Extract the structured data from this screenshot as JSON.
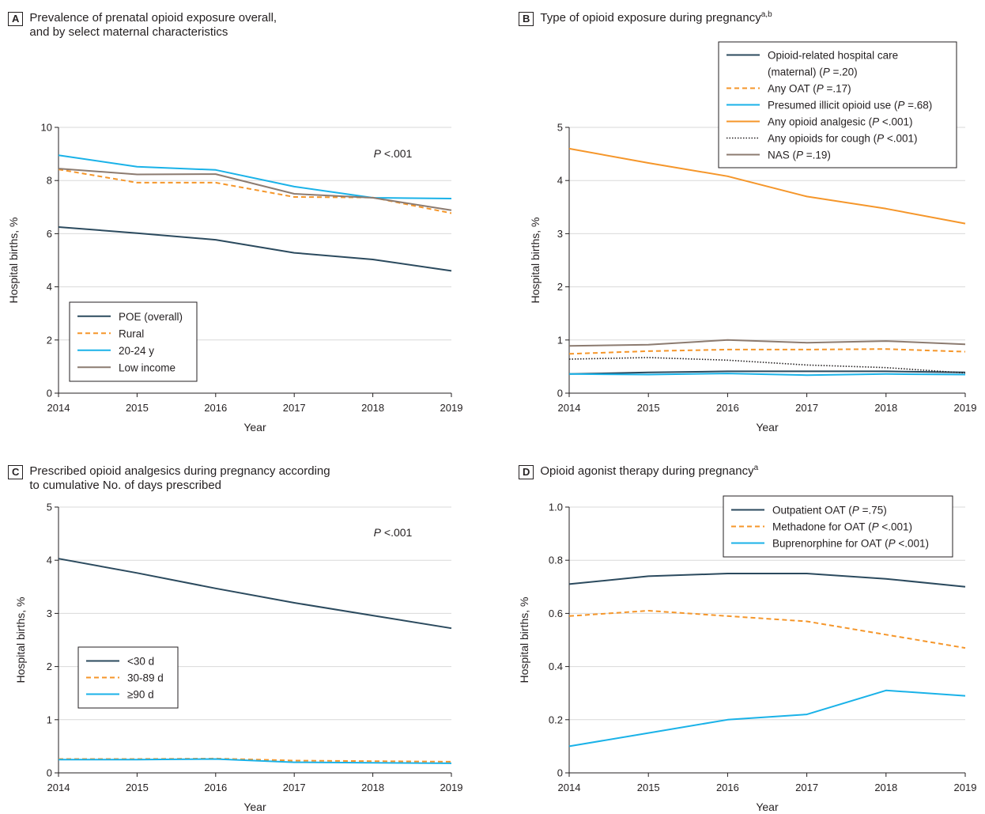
{
  "panels": [
    {
      "letter": "A",
      "title_lines": [
        "Prevalence of prenatal opioid exposure overall,",
        "and by select maternal characteristics"
      ],
      "title_sup": ""
    },
    {
      "letter": "B",
      "title_lines": [
        "Type of opioid exposure during pregnancy"
      ],
      "title_sup": "a,b"
    },
    {
      "letter": "C",
      "title_lines": [
        "Prescribed opioid analgesics during pregnancy according",
        "to cumulative No. of days prescribed"
      ],
      "title_sup": ""
    },
    {
      "letter": "D",
      "title_lines": [
        "Opioid agonist therapy during pregnancy"
      ],
      "title_sup": "a"
    }
  ],
  "colors": {
    "navy": "#2b4a5e",
    "orange": "#f5962a",
    "cyan": "#1ab2e8",
    "gray": "#8c7b70",
    "black": "#231f20",
    "grid": "#d9d9d9"
  },
  "chart_data": [
    {
      "type": "line",
      "panel": "A",
      "xlabel": "Year",
      "ylabel": "Hospital births, %",
      "x": [
        2014,
        2015,
        2016,
        2017,
        2018,
        2019
      ],
      "ylim": [
        0,
        10
      ],
      "yticks": [
        "0",
        "2",
        "4",
        "6",
        "8",
        "10"
      ],
      "grid": true,
      "annotation": {
        "italic": "P",
        "rest": " <.001"
      },
      "legend_position": "bottom-left",
      "series": [
        {
          "name": "POE (overall)",
          "style": "solid",
          "color": "#2b4a5e",
          "values": [
            6.25,
            6.02,
            5.77,
            5.28,
            5.03,
            4.6
          ]
        },
        {
          "name": "Rural",
          "style": "dashed",
          "color": "#f5962a",
          "values": [
            8.42,
            7.92,
            7.92,
            7.38,
            7.36,
            6.77
          ]
        },
        {
          "name": "20-24 y",
          "style": "solid",
          "color": "#1ab2e8",
          "values": [
            8.95,
            8.52,
            8.4,
            7.77,
            7.35,
            7.32
          ]
        },
        {
          "name": "Low income",
          "style": "solid",
          "color": "#8c7b70",
          "values": [
            8.45,
            8.23,
            8.24,
            7.5,
            7.35,
            6.88
          ]
        }
      ]
    },
    {
      "type": "line",
      "panel": "B",
      "xlabel": "Year",
      "ylabel": "Hospital births, %",
      "x": [
        2014,
        2015,
        2016,
        2017,
        2018,
        2019
      ],
      "ylim": [
        0,
        5
      ],
      "yticks": [
        "0",
        "1",
        "2",
        "3",
        "4",
        "5"
      ],
      "grid": true,
      "legend_position": "top-right",
      "series": [
        {
          "name_lines": [
            "Opioid-related hospital care",
            "(maternal) (",
            "P",
            " =.20)"
          ],
          "name": "Opioid-related hospital care (maternal) (P =.20)",
          "style": "solid",
          "color": "#2b4a5e",
          "values": [
            0.36,
            0.39,
            0.41,
            0.41,
            0.41,
            0.39
          ]
        },
        {
          "name": "Any OAT (P =.17)",
          "name_parts": [
            "Any OAT (",
            "P",
            " =.17)"
          ],
          "style": "dashed",
          "color": "#f5962a",
          "values": [
            0.74,
            0.79,
            0.82,
            0.82,
            0.83,
            0.78
          ]
        },
        {
          "name": "Presumed illicit opioid use (P =.68)",
          "name_parts": [
            "Presumed illicit opioid use (",
            "P",
            " =.68)"
          ],
          "style": "solid",
          "color": "#1ab2e8",
          "values": [
            0.36,
            0.35,
            0.37,
            0.34,
            0.36,
            0.35
          ]
        },
        {
          "name": "Any opioid analgesic (P <.001)",
          "name_parts": [
            "Any opioid analgesic (",
            "P",
            " <.001)"
          ],
          "style": "solid",
          "color": "#f5962a",
          "values": [
            4.6,
            4.33,
            4.08,
            3.7,
            3.47,
            3.19
          ]
        },
        {
          "name": "Any opioids for cough (P <.001)",
          "name_parts": [
            "Any opioids for cough (",
            "P",
            " <.001)"
          ],
          "style": "dotted",
          "color": "#231f20",
          "values": [
            0.64,
            0.67,
            0.62,
            0.53,
            0.48,
            0.38
          ]
        },
        {
          "name": "NAS (P =.19)",
          "name_parts": [
            "NAS (",
            "P",
            " =.19)"
          ],
          "style": "solid",
          "color": "#8c7b70",
          "values": [
            0.89,
            0.91,
            1.0,
            0.95,
            0.98,
            0.92
          ]
        }
      ]
    },
    {
      "type": "line",
      "panel": "C",
      "xlabel": "Year",
      "ylabel": "Hospital births, %",
      "x": [
        2014,
        2015,
        2016,
        2017,
        2018,
        2019
      ],
      "ylim": [
        0,
        5
      ],
      "yticks": [
        "0",
        "1",
        "2",
        "3",
        "4",
        "5"
      ],
      "grid": true,
      "annotation": {
        "italic": "P",
        "rest": " <.001"
      },
      "legend_position": "left",
      "series": [
        {
          "name": "<30 d",
          "style": "solid",
          "color": "#2b4a5e",
          "values": [
            4.03,
            3.76,
            3.47,
            3.2,
            2.96,
            2.72
          ]
        },
        {
          "name": "30-89 d",
          "style": "dashed",
          "color": "#f5962a",
          "values": [
            0.26,
            0.26,
            0.27,
            0.23,
            0.22,
            0.21
          ]
        },
        {
          "name": "≥90 d",
          "style": "solid",
          "color": "#1ab2e8",
          "values": [
            0.25,
            0.25,
            0.26,
            0.2,
            0.19,
            0.18
          ]
        }
      ]
    },
    {
      "type": "line",
      "panel": "D",
      "xlabel": "Year",
      "ylabel": "Hospital births, %",
      "x": [
        2014,
        2015,
        2016,
        2017,
        2018,
        2019
      ],
      "ylim": [
        0,
        1.0
      ],
      "yticks": [
        "0",
        "0.2",
        "0.4",
        "0.6",
        "0.8",
        "1.0"
      ],
      "grid": true,
      "legend_position": "top-right",
      "series": [
        {
          "name": "Outpatient OAT (P =.75)",
          "name_parts": [
            "Outpatient OAT (",
            "P",
            " =.75)"
          ],
          "style": "solid",
          "color": "#2b4a5e",
          "values": [
            0.71,
            0.74,
            0.75,
            0.75,
            0.73,
            0.7
          ]
        },
        {
          "name": "Methadone for OAT (P <.001)",
          "name_parts": [
            "Methadone for OAT (",
            "P",
            " <.001)"
          ],
          "style": "dashed",
          "color": "#f5962a",
          "values": [
            0.59,
            0.61,
            0.59,
            0.57,
            0.52,
            0.47
          ]
        },
        {
          "name": "Buprenorphine for OAT (P <.001)",
          "name_parts": [
            "Buprenorphine for OAT (",
            "P",
            " <.001)"
          ],
          "style": "solid",
          "color": "#1ab2e8",
          "values": [
            0.1,
            0.15,
            0.2,
            0.22,
            0.31,
            0.29
          ]
        }
      ]
    }
  ]
}
